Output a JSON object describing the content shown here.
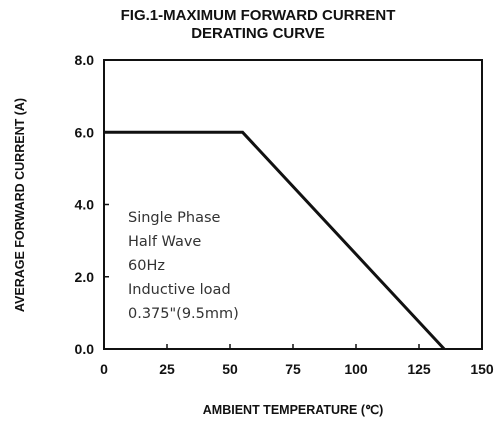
{
  "chart_data": {
    "type": "line",
    "title_lines": [
      "FIG.1-MAXIMUM FORWARD CURRENT",
      "DERATING CURVE"
    ],
    "xlabel": "AMBIENT TEMPERATURE (℃)",
    "ylabel": "AVERAGE FORWARD CURRENT (A)",
    "xlim": [
      0,
      150
    ],
    "ylim": [
      0,
      8
    ],
    "x_ticks": [
      0,
      25,
      50,
      75,
      100,
      125,
      150
    ],
    "x_tick_labels": [
      "0",
      "25",
      "50",
      "75",
      "100",
      "125",
      "150"
    ],
    "y_ticks": [
      0,
      2,
      4,
      6,
      8
    ],
    "y_tick_labels": [
      "0.0",
      "2.0",
      "4.0",
      "6.0",
      "8.0"
    ],
    "grid": false,
    "series": [
      {
        "x": [
          0,
          55,
          135
        ],
        "y": [
          6.0,
          6.0,
          0.0
        ]
      }
    ],
    "annotation_lines": [
      "Single Phase",
      "Half Wave",
      "60Hz",
      "Inductive load",
      "0.375\"(9.5mm)"
    ]
  }
}
